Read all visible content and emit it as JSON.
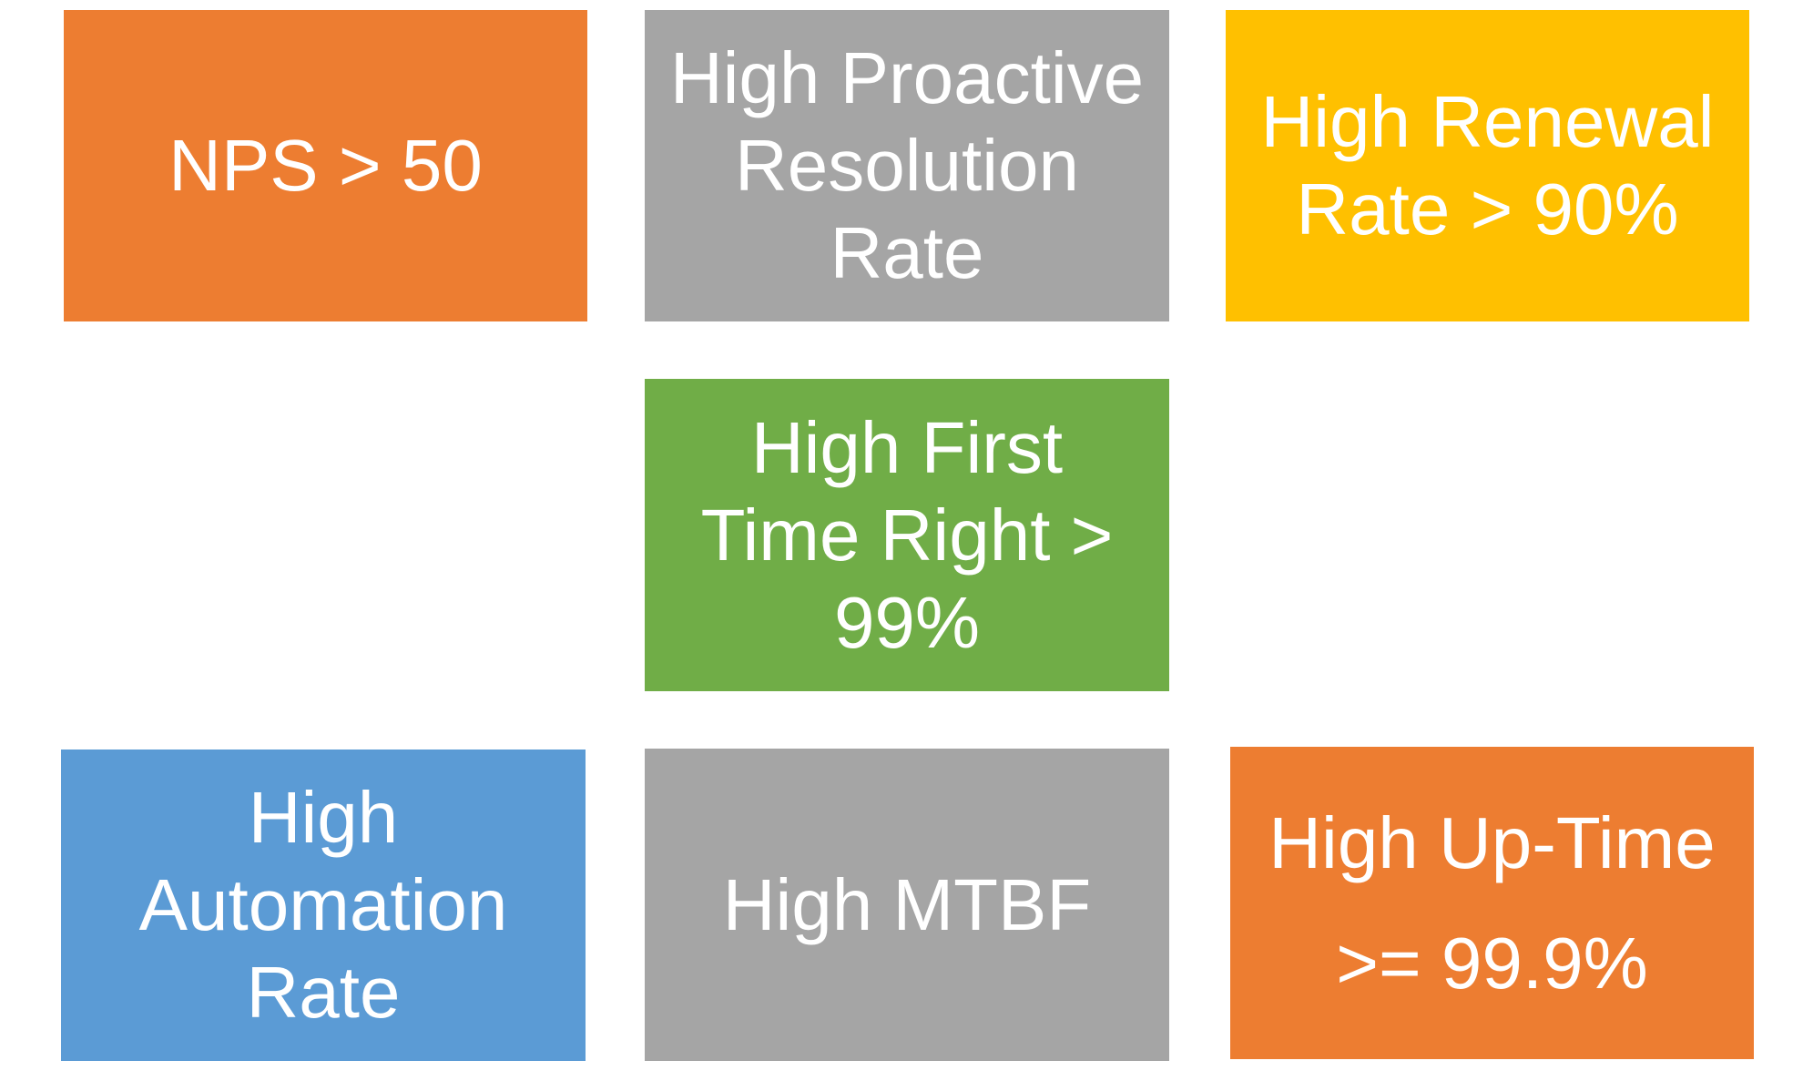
{
  "tiles": [
    {
      "id": "nps",
      "lines": [
        "NPS > 50"
      ],
      "color": "#ED7D31"
    },
    {
      "id": "proactive",
      "lines": [
        "High Proactive",
        "Resolution",
        "Rate"
      ],
      "color": "#A5A5A5"
    },
    {
      "id": "renewal",
      "lines": [
        "High Renewal",
        "Rate > 90%"
      ],
      "color": "#FFC000"
    },
    {
      "id": "ftr",
      "lines": [
        "High First",
        "Time Right >",
        "99%"
      ],
      "color": "#70AD47"
    },
    {
      "id": "automation",
      "lines": [
        "High",
        "Automation",
        "Rate"
      ],
      "color": "#5B9BD5"
    },
    {
      "id": "mtbf",
      "lines": [
        "High MTBF"
      ],
      "color": "#A5A5A5"
    },
    {
      "id": "uptime",
      "lines": [
        "High Up-Time",
        ">= 99.9%"
      ],
      "color": "#ED7D31"
    }
  ]
}
